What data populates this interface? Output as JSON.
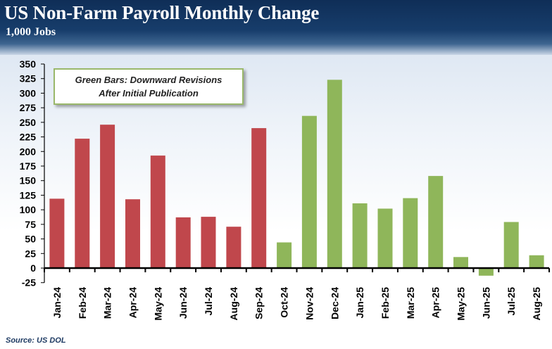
{
  "header": {
    "title": "US Non-Farm Payroll Monthly Change",
    "subtitle": "1,000 Jobs"
  },
  "annotation": {
    "line1": "Green Bars: Downward Revisions",
    "line2": "After Initial Publication"
  },
  "source": "Source: US DOL",
  "colors": {
    "red_bar": "#c0474c",
    "green_bar": "#8fb65a"
  },
  "chart_data": {
    "type": "bar",
    "title": "US Non-Farm Payroll Monthly Change",
    "ylabel": "1,000 Jobs",
    "xlabel": "",
    "ylim": [
      -25,
      350
    ],
    "yticks": [
      350,
      325,
      300,
      275,
      250,
      225,
      200,
      175,
      150,
      125,
      100,
      75,
      50,
      25,
      0,
      -25
    ],
    "categories": [
      "Jan-24",
      "Feb-24",
      "Mar-24",
      "Apr-24",
      "May-24",
      "Jun-24",
      "Jul-24",
      "Aug-24",
      "Sep-24",
      "Oct-24",
      "Nov-24",
      "Dec-24",
      "Jan-25",
      "Feb-25",
      "Mar-25",
      "Apr-25",
      "May-25",
      "Jun-25",
      "Jul-25",
      "Aug-25"
    ],
    "values": [
      119,
      222,
      246,
      118,
      193,
      87,
      88,
      71,
      240,
      44,
      261,
      323,
      111,
      102,
      120,
      158,
      19,
      -13,
      79,
      22
    ],
    "bar_colors": [
      "red",
      "red",
      "red",
      "red",
      "red",
      "red",
      "red",
      "red",
      "red",
      "green",
      "green",
      "green",
      "green",
      "green",
      "green",
      "green",
      "green",
      "green",
      "green",
      "green"
    ],
    "legend": "Green Bars: Downward Revisions After Initial Publication"
  }
}
